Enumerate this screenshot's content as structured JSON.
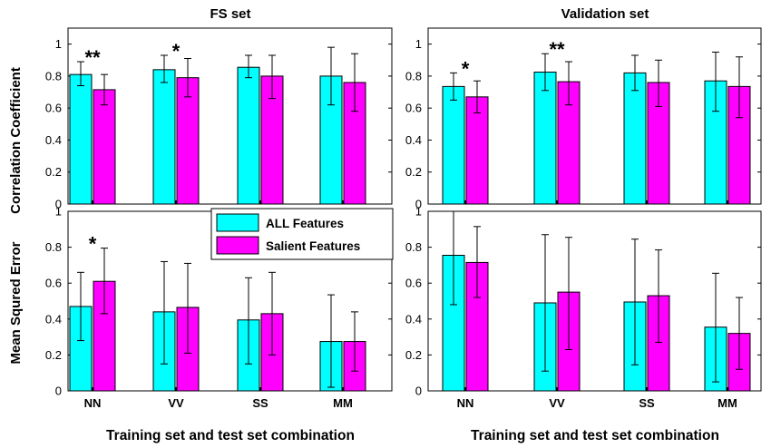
{
  "legend": {
    "all_label": "ALL Features",
    "salient_label": "Salient Features",
    "all_color": "#00ffff",
    "salient_color": "#ff00ff"
  },
  "y_labels": {
    "top": "Correlation Coefficient",
    "bottom": "Mean Squred Error"
  },
  "chart_data": [
    {
      "id": "fs-cc",
      "type": "bar",
      "title": "FS set",
      "xlabel": "",
      "ylabel": "Correlation Coefficient",
      "categories": [
        "NN",
        "VV",
        "SS",
        "MM"
      ],
      "ylim": [
        0,
        1.1
      ],
      "yticks": [
        "0",
        "0.2",
        "0.4",
        "0.6",
        "0.8",
        "1"
      ],
      "series": [
        {
          "name": "ALL Features",
          "values": [
            0.81,
            0.84,
            0.855,
            0.8
          ],
          "err_low": [
            0.74,
            0.76,
            0.79,
            0.62
          ],
          "err_high": [
            0.89,
            0.93,
            0.93,
            0.98
          ]
        },
        {
          "name": "Salient Features",
          "values": [
            0.715,
            0.79,
            0.8,
            0.76
          ],
          "err_low": [
            0.62,
            0.67,
            0.66,
            0.58
          ],
          "err_high": [
            0.81,
            0.91,
            0.93,
            0.94
          ]
        }
      ],
      "annotations": [
        {
          "category": "NN",
          "text": "**"
        },
        {
          "category": "VV",
          "text": "*"
        }
      ]
    },
    {
      "id": "val-cc",
      "type": "bar",
      "title": "Validation set",
      "xlabel": "",
      "ylabel": "",
      "categories": [
        "NN",
        "VV",
        "SS",
        "MM"
      ],
      "ylim": [
        0,
        1.1
      ],
      "yticks": [
        "0",
        "0.2",
        "0.4",
        "0.6",
        "0.8",
        "1"
      ],
      "series": [
        {
          "name": "ALL Features",
          "values": [
            0.735,
            0.825,
            0.82,
            0.77
          ],
          "err_low": [
            0.65,
            0.71,
            0.71,
            0.58
          ],
          "err_high": [
            0.82,
            0.94,
            0.93,
            0.95
          ]
        },
        {
          "name": "Salient Features",
          "values": [
            0.67,
            0.765,
            0.76,
            0.735
          ],
          "err_low": [
            0.57,
            0.62,
            0.61,
            0.54
          ],
          "err_high": [
            0.77,
            0.89,
            0.9,
            0.92
          ]
        }
      ],
      "annotations": [
        {
          "category": "NN",
          "text": "*"
        },
        {
          "category": "VV",
          "text": "**"
        }
      ]
    },
    {
      "id": "fs-mse",
      "type": "bar",
      "title": "",
      "xlabel": "Training set and test set combination",
      "ylabel": "Mean Squred Error",
      "categories": [
        "NN",
        "VV",
        "SS",
        "MM"
      ],
      "ylim": [
        0,
        1
      ],
      "yticks": [
        "0",
        "0.2",
        "0.4",
        "0.6",
        "0.8",
        "1"
      ],
      "series": [
        {
          "name": "ALL Features",
          "values": [
            0.47,
            0.44,
            0.395,
            0.275
          ],
          "err_low": [
            0.28,
            0.15,
            0.15,
            0.02
          ],
          "err_high": [
            0.66,
            0.72,
            0.63,
            0.535
          ]
        },
        {
          "name": "Salient Features",
          "values": [
            0.61,
            0.465,
            0.43,
            0.275
          ],
          "err_low": [
            0.43,
            0.21,
            0.2,
            0.11
          ],
          "err_high": [
            0.795,
            0.71,
            0.66,
            0.44
          ]
        }
      ],
      "annotations": [
        {
          "category": "NN",
          "text": "*"
        }
      ]
    },
    {
      "id": "val-mse",
      "type": "bar",
      "title": "",
      "xlabel": "Training set and test set combination",
      "ylabel": "",
      "categories": [
        "NN",
        "VV",
        "SS",
        "MM"
      ],
      "ylim": [
        0,
        1
      ],
      "yticks": [
        "0",
        "0.2",
        "0.4",
        "0.6",
        "0.8",
        "1"
      ],
      "series": [
        {
          "name": "ALL Features",
          "values": [
            0.755,
            0.49,
            0.495,
            0.355
          ],
          "err_low": [
            0.48,
            0.11,
            0.145,
            0.05
          ],
          "err_high": [
            1.0,
            0.87,
            0.845,
            0.655
          ]
        },
        {
          "name": "Salient Features",
          "values": [
            0.715,
            0.55,
            0.53,
            0.32
          ],
          "err_low": [
            0.52,
            0.23,
            0.27,
            0.12
          ],
          "err_high": [
            0.915,
            0.855,
            0.785,
            0.52
          ]
        }
      ],
      "annotations": []
    }
  ]
}
